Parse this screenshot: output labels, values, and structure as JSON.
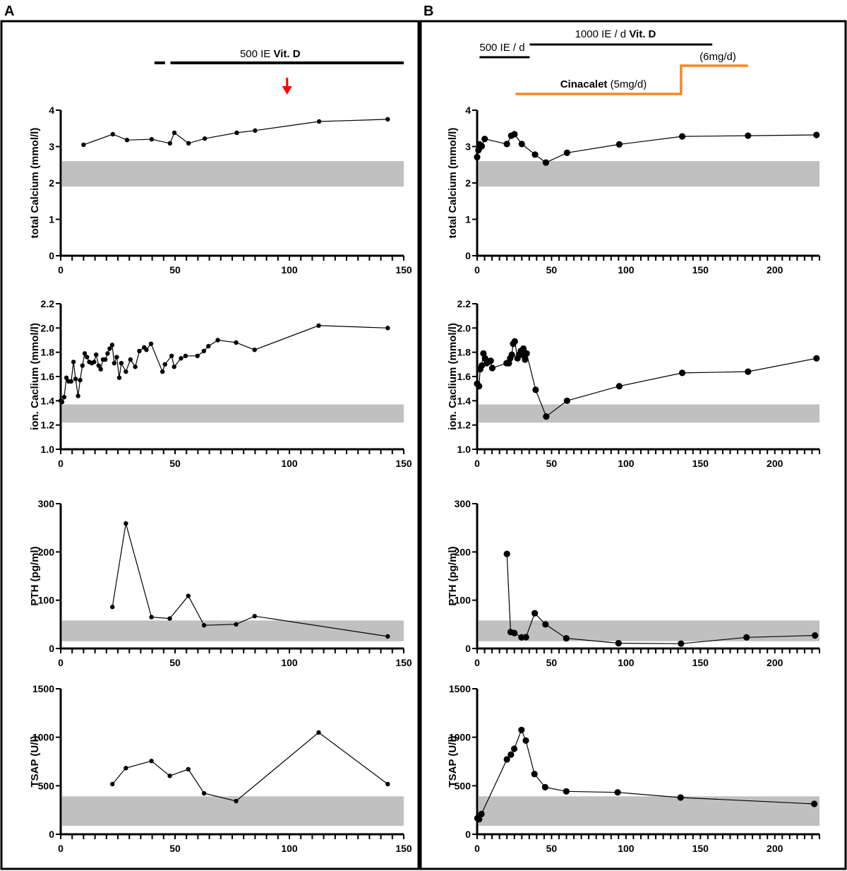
{
  "panels": [
    {
      "letter": "A",
      "annotations": {
        "vitd_label": "500 IE ",
        "vitd_label_bold": "Vit. D",
        "vitd_segments": [
          [
            41,
            45.6
          ],
          [
            48,
            150
          ]
        ],
        "arrow_day": 99,
        "arrow_color": "#ff0000"
      }
    },
    {
      "letter": "B",
      "annotations": {
        "vitd_500_label": "500 IE / d",
        "vitd_500_segment": [
          1.6,
          35.3
        ],
        "vitd_1000_label": "1000 IE / d ",
        "vitd_1000_label_bold": "Vit. D",
        "vitd_1000_segment": [
          35.3,
          158
        ],
        "cinacalcet_label_bold": "Cinacalet",
        "cinacalcet_label": " (5mg/d)",
        "cinacalcet_5mg_segment": [
          25.8,
          137
        ],
        "cinacalcet_6mg_label": "(6mg/d)",
        "cinacalcet_6mg_segment": [
          137,
          182
        ],
        "cinacalcet_color": "#f7881f"
      }
    }
  ],
  "chart_data": [
    {
      "panel": "A",
      "type": "line",
      "ylabel": "total Calcium (mmol/l)",
      "xlim": [
        0,
        150
      ],
      "ylim": [
        0,
        4
      ],
      "xticks": [
        0,
        50,
        100,
        150
      ],
      "yticks": [
        0,
        1,
        2,
        3,
        4
      ],
      "ytick_labels": [
        "0",
        "1",
        "2",
        "3",
        "4"
      ],
      "reference_range": [
        1.9,
        2.6
      ],
      "x": [
        10,
        22.8,
        29,
        39.8,
        47.8,
        49.7,
        55.9,
        63,
        77,
        85,
        113,
        143
      ],
      "y": [
        3.05,
        3.34,
        3.18,
        3.2,
        3.09,
        3.38,
        3.09,
        3.22,
        3.38,
        3.44,
        3.69,
        3.75
      ]
    },
    {
      "panel": "A",
      "type": "line",
      "ylabel": "ion. Caclium (mmol/l)",
      "xlim": [
        0,
        150
      ],
      "ylim": [
        1.0,
        2.2
      ],
      "xticks": [
        0,
        50,
        100,
        150
      ],
      "yticks": [
        1.0,
        1.2,
        1.4,
        1.6,
        1.8,
        2.0,
        2.2
      ],
      "ytick_labels": [
        "1.0",
        "1.2",
        "1.4",
        "1.6",
        "1.8",
        "2.0",
        "2.2"
      ],
      "reference_range": [
        1.22,
        1.37
      ],
      "x": [
        0,
        0.6,
        1.5,
        2.5,
        3.5,
        4.6,
        5.6,
        6.5,
        7.6,
        8.5,
        9.5,
        10.5,
        11.5,
        12.5,
        13.6,
        14.6,
        15.5,
        16.6,
        17.5,
        18.5,
        19.5,
        20.5,
        21.4,
        22.5,
        23.4,
        24.5,
        25.6,
        26.5,
        28.5,
        30.5,
        32.6,
        34.4,
        36.5,
        37.5,
        39.5,
        44.5,
        45.6,
        48.5,
        49.6,
        52.6,
        54.6,
        59.8,
        62.6,
        64.6,
        68.7,
        76.7,
        84.8,
        112.8,
        143
      ],
      "y": [
        1.4,
        1.39,
        1.43,
        1.59,
        1.56,
        1.56,
        1.72,
        1.58,
        1.44,
        1.57,
        1.69,
        1.79,
        1.76,
        1.72,
        1.71,
        1.72,
        1.78,
        1.69,
        1.66,
        1.74,
        1.74,
        1.79,
        1.83,
        1.86,
        1.71,
        1.76,
        1.59,
        1.71,
        1.64,
        1.74,
        1.68,
        1.81,
        1.84,
        1.82,
        1.87,
        1.64,
        1.7,
        1.77,
        1.68,
        1.75,
        1.77,
        1.77,
        1.81,
        1.85,
        1.9,
        1.88,
        1.82,
        2.02,
        2.0
      ]
    },
    {
      "panel": "A",
      "type": "line",
      "ylabel": "PTH (pg/ml)",
      "xlim": [
        0,
        150
      ],
      "ylim": [
        0,
        300
      ],
      "xticks": [
        0,
        50,
        100,
        150
      ],
      "yticks": [
        0,
        100,
        200,
        300
      ],
      "ytick_labels": [
        "0",
        "100",
        "200",
        "300"
      ],
      "reference_range": [
        15,
        58
      ],
      "x": [
        22.6,
        28.5,
        39.7,
        47.7,
        55.8,
        62.7,
        76.7,
        84.8,
        143
      ],
      "y": [
        86,
        259,
        65,
        62,
        109,
        48,
        50,
        67,
        25
      ]
    },
    {
      "panel": "A",
      "type": "line",
      "ylabel": "TSAP (U/l)",
      "xlim": [
        0,
        150
      ],
      "ylim": [
        0,
        1500
      ],
      "xticks": [
        0,
        50,
        100,
        150
      ],
      "yticks": [
        0,
        500,
        1000,
        1500
      ],
      "ytick_labels": [
        "0",
        "500",
        "1000",
        "1500"
      ],
      "reference_range": [
        87,
        391
      ],
      "x": [
        22.6,
        28.5,
        39.7,
        47.7,
        55.8,
        62.7,
        76.7,
        112.8,
        143
      ],
      "y": [
        517,
        682,
        755,
        602,
        670,
        422,
        342,
        1049,
        517
      ]
    },
    {
      "panel": "B",
      "type": "line",
      "ylabel": "total Calcium (mmol/l)",
      "xlim": [
        0,
        230
      ],
      "ylim": [
        0,
        4
      ],
      "xticks": [
        0,
        50,
        100,
        150,
        200
      ],
      "yticks": [
        0,
        1,
        2,
        3,
        4
      ],
      "ytick_labels": [
        "0",
        "1",
        "2",
        "3",
        "4"
      ],
      "reference_range": [
        1.9,
        2.6
      ],
      "x": [
        0,
        0.9,
        1.6,
        3.1,
        5.1,
        20,
        22.9,
        25.1,
        30,
        38.9,
        46.2,
        60.4,
        95.5,
        137.8,
        182,
        228
      ],
      "y": [
        2.71,
        2.9,
        3.06,
        3.01,
        3.21,
        3.07,
        3.3,
        3.34,
        3.07,
        2.78,
        2.56,
        2.83,
        3.06,
        3.28,
        3.3,
        3.32
      ]
    },
    {
      "panel": "B",
      "type": "line",
      "ylabel": "ion. Caclium (mmol/l)",
      "xlim": [
        0,
        230
      ],
      "ylim": [
        1.0,
        2.2
      ],
      "xticks": [
        0,
        50,
        100,
        150,
        200
      ],
      "yticks": [
        1.0,
        1.2,
        1.4,
        1.6,
        1.8,
        2.0,
        2.2
      ],
      "ytick_labels": [
        "1.0",
        "1.2",
        "1.4",
        "1.6",
        "1.8",
        "2.0",
        "2.2"
      ],
      "reference_range": [
        1.22,
        1.37
      ],
      "x": [
        0,
        1.3,
        2,
        3.1,
        4.2,
        5.3,
        6.4,
        7.6,
        9.1,
        10.2,
        19.8,
        21.3,
        22.2,
        23.3,
        24.2,
        25.3,
        27.1,
        28.2,
        29.3,
        30.2,
        31.1,
        32.2,
        33.3,
        39.3,
        46.4,
        60.4,
        95.5,
        137.8,
        182,
        228
      ],
      "y": [
        1.54,
        1.52,
        1.66,
        1.69,
        1.79,
        1.75,
        1.71,
        1.72,
        1.73,
        1.67,
        1.71,
        1.71,
        1.75,
        1.78,
        1.87,
        1.89,
        1.75,
        1.78,
        1.81,
        1.78,
        1.83,
        1.74,
        1.79,
        1.49,
        1.27,
        1.4,
        1.52,
        1.63,
        1.64,
        1.75
      ]
    },
    {
      "panel": "B",
      "type": "line",
      "ylabel": "PTH (pg/ml)",
      "xlim": [
        0,
        230
      ],
      "ylim": [
        0,
        300
      ],
      "xticks": [
        0,
        50,
        100,
        150,
        200
      ],
      "yticks": [
        0,
        100,
        200,
        300
      ],
      "ytick_labels": [
        "0",
        "100",
        "200",
        "300"
      ],
      "reference_range": [
        15,
        58
      ],
      "x": [
        20,
        22.5,
        25,
        29.8,
        32.8,
        38.7,
        45.9,
        59.9,
        95,
        137,
        181,
        227
      ],
      "y": [
        196,
        34,
        32,
        23,
        23.5,
        73,
        50,
        21,
        11,
        10,
        23,
        27
      ]
    },
    {
      "panel": "B",
      "type": "line",
      "ylabel": "TSAP (U/l)",
      "xlim": [
        0,
        230
      ],
      "ylim": [
        0,
        1500
      ],
      "xticks": [
        0,
        50,
        100,
        150,
        200
      ],
      "yticks": [
        0,
        500,
        1000,
        1500
      ],
      "ytick_labels": [
        "0",
        "500",
        "1000",
        "1500"
      ],
      "reference_range": [
        87,
        391
      ],
      "x": [
        0.2,
        1.3,
        2.9,
        20,
        22.7,
        24.9,
        29.8,
        32.7,
        38.5,
        45.7,
        59.9,
        94.4,
        136.7,
        226.5
      ],
      "y": [
        165,
        155,
        209,
        772,
        821,
        881,
        1075,
        966,
        621,
        485,
        442,
        432,
        379,
        313
      ]
    }
  ]
}
